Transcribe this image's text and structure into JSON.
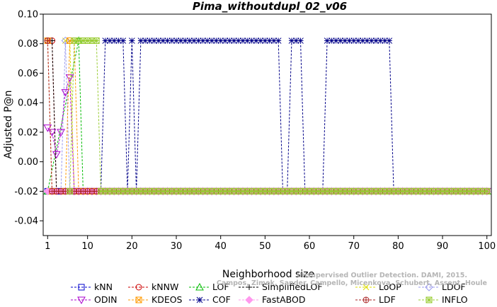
{
  "chart_data": {
    "type": "line",
    "title": "Pima_withoutdupl_02_v06",
    "xlabel": "Neighborhood size",
    "ylabel": "Adjusted P@n",
    "xlim": [
      0,
      101
    ],
    "ylim": [
      -0.05,
      0.1
    ],
    "xticks": [
      1,
      10,
      20,
      30,
      40,
      50,
      60,
      70,
      80,
      90,
      100
    ],
    "yticks": [
      -0.04,
      -0.02,
      0.0,
      0.02,
      0.04,
      0.06,
      0.08,
      0.1
    ],
    "ytick_labels": [
      "-0.04",
      "-0.02",
      "0.00",
      "0.02",
      "0.04",
      "0.06",
      "0.08",
      "0.10"
    ],
    "grid": false,
    "legend_position": "bottom",
    "baseline_value": -0.02,
    "series": [
      {
        "name": "kNN",
        "color": "#0000cc",
        "marker": "square",
        "points": [
          [
            1,
            -0.02
          ],
          [
            2,
            -0.02
          ]
        ],
        "flat_from": 2
      },
      {
        "name": "kNNW",
        "color": "#cc0000",
        "marker": "circle",
        "points": [
          [
            1,
            0.082
          ],
          [
            2,
            0.082
          ],
          [
            3,
            -0.02
          ]
        ],
        "flat_from": 3
      },
      {
        "name": "LOF",
        "color": "#00bb00",
        "marker": "triangle-up",
        "points": [
          [
            1,
            -0.02
          ],
          [
            8,
            0.082
          ],
          [
            9,
            -0.02
          ]
        ],
        "flat_from": 9
      },
      {
        "name": "SimplifiedLOF",
        "color": "#000000",
        "marker": "plus",
        "points": [
          [
            1,
            0.082
          ],
          [
            2,
            0.082
          ],
          [
            3,
            -0.02
          ]
        ],
        "flat_from": 3
      },
      {
        "name": "LoOP",
        "color": "#dddd00",
        "marker": "x",
        "points": [
          [
            5,
            0.082
          ],
          [
            6,
            0.082
          ],
          [
            7,
            -0.02
          ]
        ],
        "flat_from": 7
      },
      {
        "name": "LDOF",
        "color": "#9999ee",
        "marker": "diamond",
        "points": [
          [
            4,
            -0.02
          ],
          [
            5,
            0.082
          ],
          [
            6,
            -0.02
          ]
        ],
        "flat_from": 6
      },
      {
        "name": "ODIN",
        "color": "#aa00cc",
        "marker": "triangle-down",
        "points": [
          [
            1,
            0.023
          ],
          [
            2,
            0.02
          ],
          [
            3,
            0.005
          ],
          [
            4,
            0.02
          ],
          [
            5,
            0.047
          ],
          [
            6,
            0.057
          ],
          [
            7,
            -0.02
          ]
        ],
        "flat_from": 7
      },
      {
        "name": "KDEOS",
        "color": "#ff9900",
        "marker": "square-x",
        "points": [
          [
            1,
            0.082
          ],
          [
            2,
            -0.02
          ],
          [
            5,
            -0.02
          ],
          [
            6,
            0.082
          ],
          [
            7,
            0.082
          ],
          [
            8,
            -0.02
          ]
        ],
        "flat_from": 8
      },
      {
        "name": "COF",
        "color": "#000088",
        "marker": "asterisk",
        "points": [
          [
            13,
            -0.02
          ],
          [
            14,
            0.082
          ],
          [
            15,
            0.082
          ],
          [
            16,
            0.082
          ],
          [
            17,
            0.082
          ],
          [
            18,
            0.082
          ],
          [
            19,
            -0.02
          ],
          [
            20,
            0.082
          ],
          [
            21,
            -0.02
          ],
          [
            22,
            0.082
          ],
          [
            23,
            0.082
          ],
          [
            24,
            0.082
          ],
          [
            25,
            0.082
          ],
          [
            26,
            0.082
          ],
          [
            27,
            0.082
          ],
          [
            28,
            0.082
          ],
          [
            29,
            0.082
          ],
          [
            30,
            0.082
          ],
          [
            31,
            0.082
          ],
          [
            32,
            0.082
          ],
          [
            33,
            0.082
          ],
          [
            34,
            0.082
          ],
          [
            35,
            0.082
          ],
          [
            36,
            0.082
          ],
          [
            37,
            0.082
          ],
          [
            38,
            0.082
          ],
          [
            39,
            0.082
          ],
          [
            40,
            0.082
          ],
          [
            41,
            0.082
          ],
          [
            42,
            0.082
          ],
          [
            43,
            0.082
          ],
          [
            44,
            0.082
          ],
          [
            45,
            0.082
          ],
          [
            46,
            0.082
          ],
          [
            47,
            0.082
          ],
          [
            48,
            0.082
          ],
          [
            49,
            0.082
          ],
          [
            50,
            0.082
          ],
          [
            51,
            0.082
          ],
          [
            52,
            0.082
          ],
          [
            53,
            0.082
          ],
          [
            54,
            -0.02
          ],
          [
            55,
            -0.02
          ],
          [
            56,
            0.082
          ],
          [
            57,
            0.082
          ],
          [
            58,
            0.082
          ],
          [
            59,
            -0.02
          ],
          [
            60,
            -0.02
          ],
          [
            61,
            -0.02
          ],
          [
            62,
            -0.02
          ],
          [
            63,
            -0.02
          ],
          [
            64,
            0.082
          ],
          [
            65,
            0.082
          ],
          [
            66,
            0.082
          ],
          [
            67,
            0.082
          ],
          [
            68,
            0.082
          ],
          [
            69,
            0.082
          ],
          [
            70,
            0.082
          ],
          [
            71,
            0.082
          ],
          [
            72,
            0.082
          ],
          [
            73,
            0.082
          ],
          [
            74,
            0.082
          ],
          [
            75,
            0.082
          ],
          [
            76,
            0.082
          ],
          [
            77,
            0.082
          ],
          [
            78,
            0.082
          ],
          [
            79,
            -0.02
          ]
        ],
        "flat_from": 79
      },
      {
        "name": "FastABOD",
        "color": "#ff99ee",
        "marker": "diamond-filled",
        "points": [
          [
            1,
            -0.02
          ],
          [
            2,
            -0.02
          ]
        ],
        "flat_from": 2
      },
      {
        "name": "LDF",
        "color": "#aa2222",
        "marker": "circle-plus",
        "points": [
          [
            1,
            0.082
          ],
          [
            2,
            -0.02
          ]
        ],
        "flat_from": 2
      },
      {
        "name": "INFLO",
        "color": "#99cc33",
        "marker": "square-star",
        "points": [
          [
            6,
            -0.02
          ],
          [
            7,
            0.082
          ],
          [
            8,
            0.082
          ],
          [
            9,
            0.082
          ],
          [
            10,
            0.082
          ],
          [
            11,
            0.082
          ],
          [
            12,
            0.082
          ],
          [
            13,
            -0.02
          ]
        ],
        "flat_from": 13
      }
    ]
  },
  "legend_rows": [
    [
      "kNN",
      "kNNW",
      "LOF",
      "SimplifiedLOF",
      "LoOP",
      "LDOF"
    ],
    [
      "ODIN",
      "KDEOS",
      "COF",
      "FastABOD",
      "LDF",
      "INFLO"
    ]
  ],
  "watermark": {
    "line1": "Unsupervised Outlier Detection. DAMI, 2015.",
    "line2": "Campos, Zimek, Sander, Campello, Micenkova, Schubert, Assent, Houle"
  }
}
